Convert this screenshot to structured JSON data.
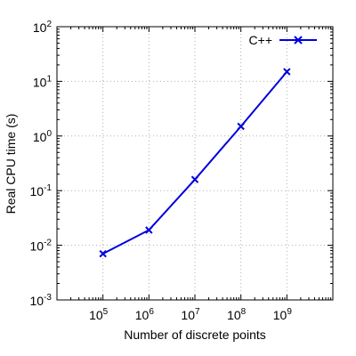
{
  "chart_data": {
    "type": "line",
    "scale": {
      "x": "log",
      "y": "log"
    },
    "xlabel": "Number of discrete points",
    "ylabel": "Real CPU time (s)",
    "xlim": [
      10000,
      10000000000
    ],
    "ylim": [
      0.001,
      100
    ],
    "grid": true,
    "legend_position": "top-right",
    "x_ticks": [
      {
        "value": 100000,
        "base": "10",
        "exp": "5"
      },
      {
        "value": 1000000,
        "base": "10",
        "exp": "6"
      },
      {
        "value": 10000000,
        "base": "10",
        "exp": "7"
      },
      {
        "value": 100000000,
        "base": "10",
        "exp": "8"
      },
      {
        "value": 1000000000,
        "base": "10",
        "exp": "9"
      }
    ],
    "y_ticks": [
      {
        "value": 0.001,
        "base": "10",
        "exp": "-3"
      },
      {
        "value": 0.01,
        "base": "10",
        "exp": "-2"
      },
      {
        "value": 0.1,
        "base": "10",
        "exp": "-1"
      },
      {
        "value": 1,
        "base": "10",
        "exp": "0"
      },
      {
        "value": 10,
        "base": "10",
        "exp": "1"
      },
      {
        "value": 100,
        "base": "10",
        "exp": "2"
      }
    ],
    "series": [
      {
        "name": "C++",
        "color": "#0000dd",
        "marker": "x",
        "x": [
          100000,
          1000000,
          10000000,
          100000000,
          1000000000
        ],
        "y": [
          0.007,
          0.019,
          0.16,
          1.5,
          15
        ]
      }
    ]
  }
}
